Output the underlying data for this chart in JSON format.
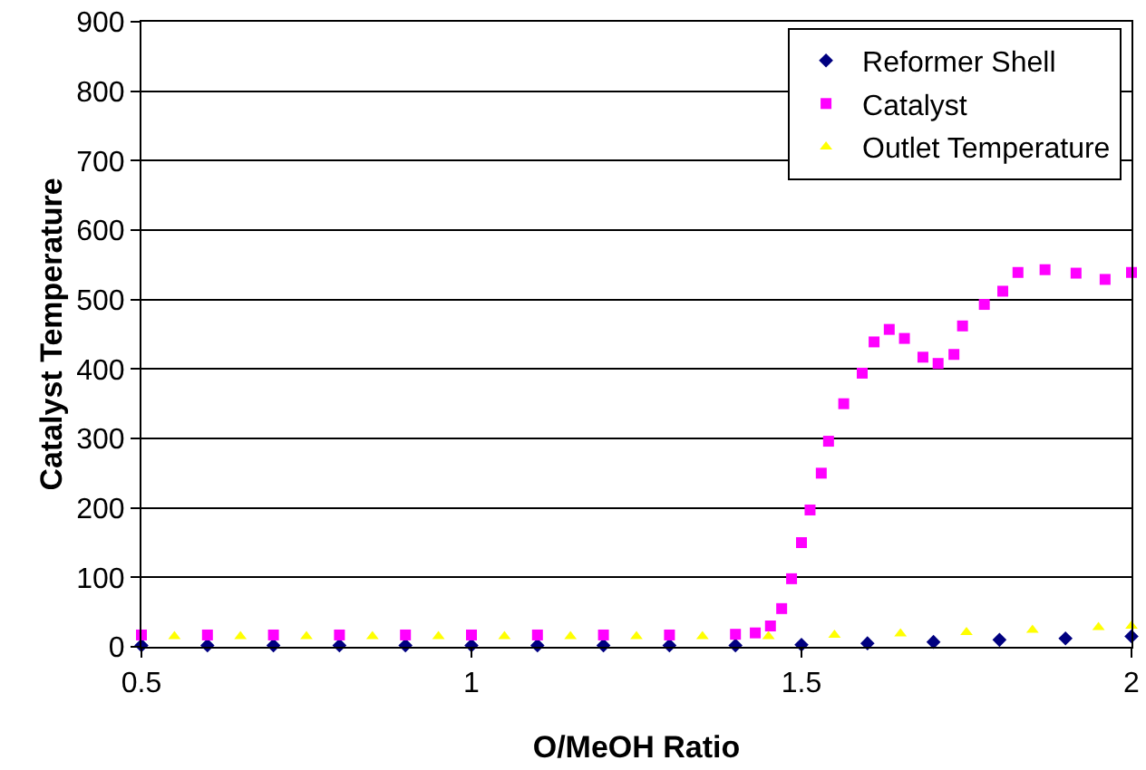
{
  "chart_data": {
    "type": "scatter",
    "xlabel": "O/MeOH Ratio",
    "ylabel": "Catalyst Temperature",
    "xlim": [
      0.5,
      2
    ],
    "xticks": [
      0.5,
      1,
      1.5,
      2
    ],
    "ylim": [
      0,
      900
    ],
    "yticks": [
      0,
      100,
      200,
      300,
      400,
      500,
      600,
      700,
      800,
      900
    ],
    "grid": "y",
    "legend": "top right",
    "series": [
      {
        "name": "Reformer Shell",
        "color": "#000080",
        "marker": "diamond",
        "x": [
          0.5,
          0.6,
          0.7,
          0.8,
          0.9,
          1.0,
          1.1,
          1.2,
          1.3,
          1.4,
          1.5,
          1.6,
          1.7,
          1.8,
          1.9,
          2.0
        ],
        "values": [
          2,
          2,
          2,
          2,
          2,
          2,
          2,
          2,
          2,
          2,
          3,
          5,
          7,
          10,
          12,
          15
        ]
      },
      {
        "name": "Catalyst",
        "color": "#ff00ff",
        "marker": "square",
        "x": [
          0.5,
          0.6,
          0.7,
          0.8,
          0.9,
          1.0,
          1.1,
          1.2,
          1.3,
          1.4,
          1.43,
          1.453,
          1.47,
          1.485,
          1.5,
          1.513,
          1.53,
          1.541,
          1.564,
          1.592,
          1.61,
          1.633,
          1.656,
          1.684,
          1.707,
          1.731,
          1.744,
          1.777,
          1.805,
          1.828,
          1.869,
          1.916,
          1.96,
          2.0
        ],
        "values": [
          17,
          17,
          17,
          17,
          17,
          17,
          17,
          17,
          17,
          18,
          20,
          30,
          55,
          98,
          150,
          197,
          250,
          296,
          350,
          394,
          439,
          457,
          444,
          417,
          408,
          421,
          462,
          493,
          512,
          539,
          543,
          538,
          529,
          539
        ]
      },
      {
        "name": "Outlet Temperature",
        "color": "#ffff00",
        "marker": "triangle",
        "x": [
          0.55,
          0.65,
          0.75,
          0.85,
          0.95,
          1.05,
          1.15,
          1.25,
          1.35,
          1.45,
          1.55,
          1.65,
          1.75,
          1.85,
          1.95,
          2.0
        ],
        "values": [
          15,
          15,
          15,
          15,
          15,
          15,
          15,
          15,
          15,
          15,
          17,
          19,
          21,
          24,
          28,
          30
        ]
      }
    ]
  }
}
